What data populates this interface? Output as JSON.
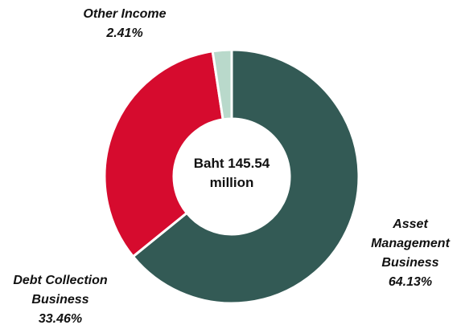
{
  "chart_data": {
    "type": "pie",
    "center_label": "Baht 145.54 million",
    "categories": [
      "Asset Management Business",
      "Debt Collection Business",
      "Other Income"
    ],
    "values": [
      64.13,
      33.46,
      2.41
    ],
    "value_labels": [
      "64.13%",
      "33.46%",
      "2.41%"
    ],
    "colors": [
      "#335a55",
      "#d60b2e",
      "#b9d9cb"
    ]
  }
}
